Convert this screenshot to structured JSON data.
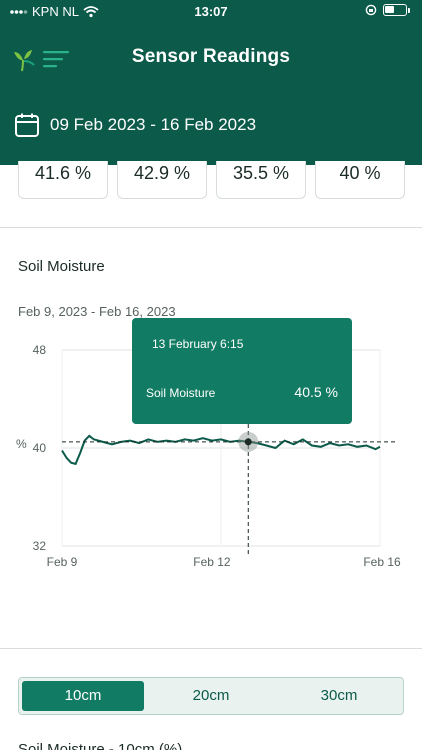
{
  "status": {
    "carrier": "KPN NL",
    "time": "13:07"
  },
  "header": {
    "title": "Sensor Readings",
    "date_range": "09 Feb 2023 - 16 Feb 2023"
  },
  "stats": [
    "41.6 %",
    "42.9 %",
    "35.5 %",
    "40 %"
  ],
  "section": {
    "title": "Soil Moisture",
    "range": "Feb 9, 2023 - Feb 16, 2023"
  },
  "tooltip": {
    "date": "13 February 6:15",
    "label": "Soil Moisture",
    "value": "40.5 %"
  },
  "chart_data": {
    "type": "line",
    "ylabel": "%",
    "ylim": [
      32,
      48
    ],
    "yticks": [
      "48",
      "40",
      "32"
    ],
    "xticks": [
      "Feb 9",
      "Feb 12",
      "Feb 16"
    ],
    "reference_line": 40.5,
    "series": [
      {
        "color": "#0b5a4a",
        "x": [
          9.0,
          9.1,
          9.2,
          9.3,
          9.4,
          9.5,
          9.6,
          9.7,
          9.9,
          10.1,
          10.3,
          10.5,
          10.7,
          10.9,
          11.1,
          11.3,
          11.5,
          11.7,
          11.9,
          12.1,
          12.3,
          12.5,
          12.7,
          12.9,
          13.1,
          13.3,
          13.5,
          13.7,
          13.9,
          14.1,
          14.3,
          14.5,
          14.7,
          14.9,
          15.1,
          15.3,
          15.5,
          15.7,
          15.9,
          16.0
        ],
        "values": [
          39.8,
          39.2,
          38.8,
          38.7,
          39.6,
          40.6,
          41.0,
          40.7,
          40.5,
          40.3,
          40.5,
          40.6,
          40.4,
          40.7,
          40.5,
          40.6,
          40.5,
          40.7,
          40.6,
          40.8,
          40.6,
          40.7,
          40.5,
          40.6,
          40.5,
          40.4,
          40.2,
          40.0,
          40.6,
          40.3,
          40.7,
          40.2,
          40.1,
          40.4,
          40.2,
          40.3,
          40.1,
          40.2,
          39.9,
          40.1
        ]
      }
    ],
    "highlight": {
      "x": 13.1,
      "y": 40.5
    }
  },
  "tabs": [
    "10cm",
    "20cm",
    "30cm"
  ],
  "active_tab": 0,
  "next_section_peek": "Soil Moisture - 10cm (%)",
  "colors": {
    "header": "#0b5a4a",
    "accent": "#127b63"
  }
}
